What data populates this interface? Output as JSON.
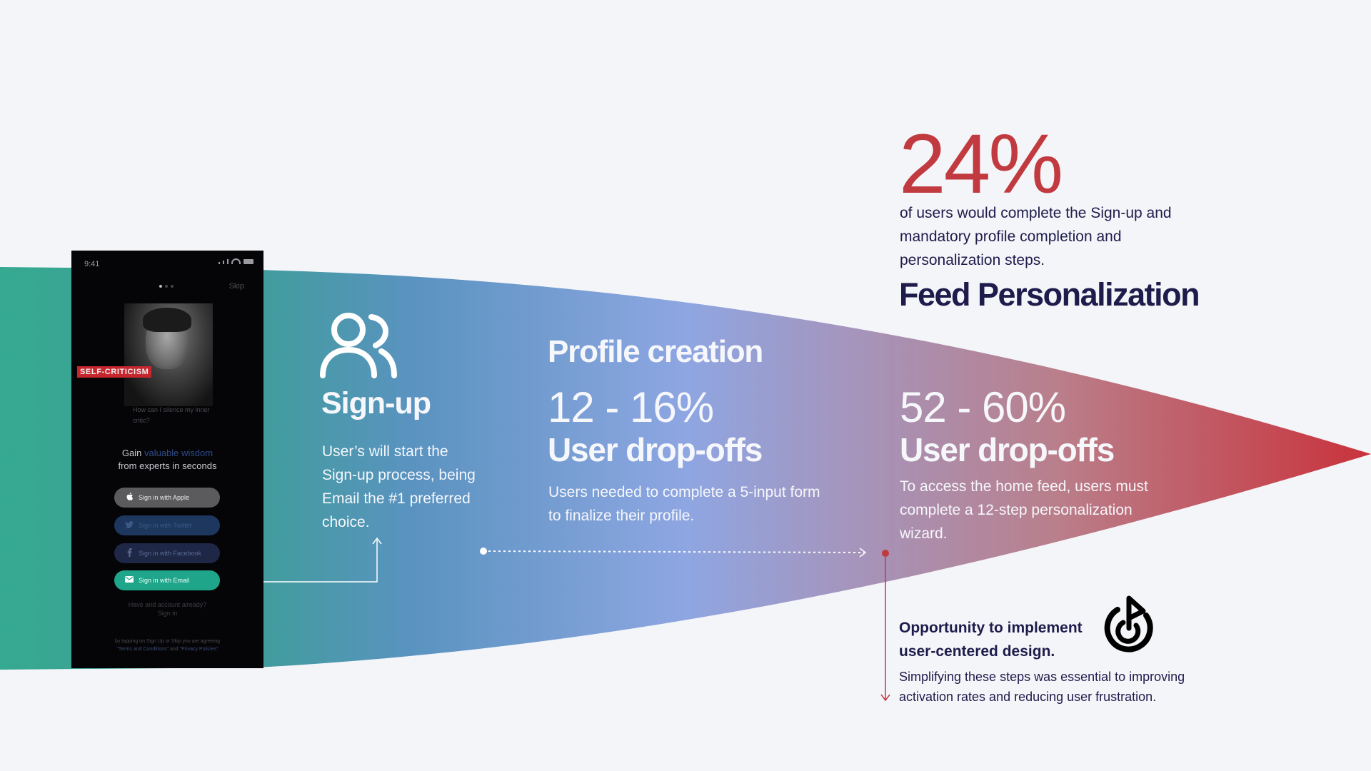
{
  "phone": {
    "time": "9:41",
    "skip": "Skip",
    "card_badge": "SELF-CRITICISM",
    "card_caption": "How can I silence my inner critic?",
    "headline_pre": "Gain ",
    "headline_accent": "valuable wisdom",
    "headline_post": "from experts in seconds",
    "buttons": {
      "apple": "Sign in with Apple",
      "twitter": "Sign in with Twitter",
      "facebook": "Sign in with Facebook",
      "email": "Sign in with Email"
    },
    "have_account": "Have and account already?",
    "sign_in": "Sign in",
    "legal_line1": "by tapping on Sign Up or Skip you are agreeing",
    "legal_terms": "\"Terms and Conditions\"",
    "legal_and": " and ",
    "legal_privacy": "\"Privacy Policies\""
  },
  "signup": {
    "title": "Sign-up",
    "description": "User’s will start the Sign-up process, being Email the #1 preferred choice."
  },
  "profile": {
    "title": "Profile creation",
    "range": "12 - 16%",
    "label": "User drop-offs",
    "description": "Users needed to complete a 5-input form to finalize their profile."
  },
  "completion": {
    "stat": "24%",
    "description": "of users would complete the Sign-up and mandatory profile completion and personalization steps."
  },
  "feed": {
    "title": "Feed Personalization",
    "range": "52 - 60%",
    "label": "User drop-offs",
    "description": "To access the home feed, users must complete a 12-step personalization wizard."
  },
  "opportunity": {
    "title": "Opportunity to implement user-centered design.",
    "description": "Simplifying these steps was essential to improving activation rates and reducing user frustration."
  },
  "colors": {
    "teal": "#36a991",
    "blue": "#8ea6e2",
    "red": "#c9323b",
    "navy": "#1f1b4b",
    "background": "#f4f5f9"
  },
  "icons": [
    "users-icon",
    "target-icon",
    "apple-icon",
    "twitter-icon",
    "facebook-icon",
    "mail-icon"
  ]
}
